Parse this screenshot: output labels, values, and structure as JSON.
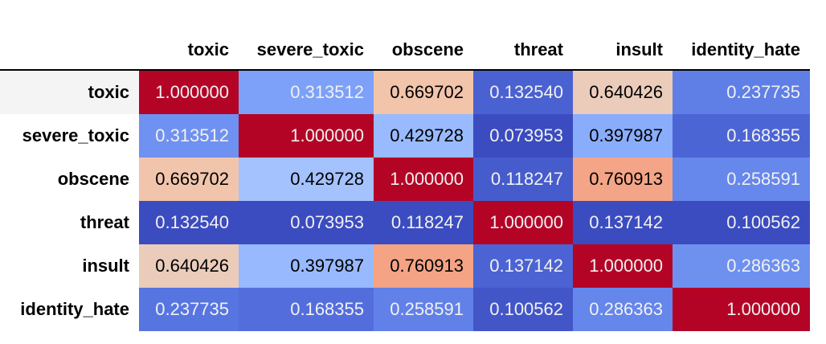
{
  "table": {
    "columns": [
      "toxic",
      "severe_toxic",
      "obscene",
      "threat",
      "insult",
      "identity_hate"
    ],
    "rows": [
      {
        "label": "toxic",
        "cells": [
          "1.000000",
          "0.313512",
          "0.669702",
          "0.132540",
          "0.640426",
          "0.237735"
        ]
      },
      {
        "label": "severe_toxic",
        "cells": [
          "0.313512",
          "1.000000",
          "0.429728",
          "0.073953",
          "0.397987",
          "0.168355"
        ]
      },
      {
        "label": "obscene",
        "cells": [
          "0.669702",
          "0.429728",
          "1.000000",
          "0.118247",
          "0.760913",
          "0.258591"
        ]
      },
      {
        "label": "threat",
        "cells": [
          "0.132540",
          "0.073953",
          "0.118247",
          "1.000000",
          "0.137142",
          "0.100562"
        ]
      },
      {
        "label": "insult",
        "cells": [
          "0.640426",
          "0.397987",
          "0.760913",
          "0.137142",
          "1.000000",
          "0.286363"
        ]
      },
      {
        "label": "identity_hate",
        "cells": [
          "0.237735",
          "0.168355",
          "0.258591",
          "0.100562",
          "0.286363",
          "1.000000"
        ]
      }
    ]
  }
}
